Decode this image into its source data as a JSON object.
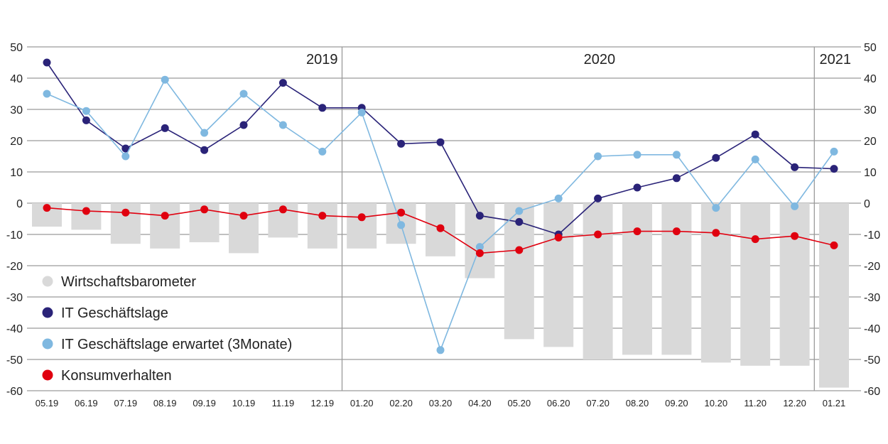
{
  "chart_data": {
    "type": "bar+line",
    "categories": [
      "05.19",
      "06.19",
      "07.19",
      "08.19",
      "09.19",
      "10.19",
      "11.19",
      "12.19",
      "01.20",
      "02.20",
      "03.20",
      "04.20",
      "05.20",
      "06.20",
      "07.20",
      "08.20",
      "09.20",
      "10.20",
      "11.20",
      "12.20",
      "01.21"
    ],
    "ylim": [
      -60,
      50
    ],
    "yticks": [
      50,
      40,
      30,
      20,
      10,
      0,
      -10,
      -20,
      -30,
      -40,
      -50,
      -60
    ],
    "grid": true,
    "year_labels": [
      {
        "label": "2019",
        "start_index": 0,
        "end_index": 7
      },
      {
        "label": "2020",
        "start_index": 8,
        "end_index": 19
      },
      {
        "label": "2021",
        "start_index": 20,
        "end_index": 20
      }
    ],
    "legend_position": "bottom-left",
    "series": [
      {
        "name": "Wirtschaftsbarometer",
        "kind": "bar",
        "color": "#d9d9d9",
        "values": [
          -7.5,
          -8.5,
          -13,
          -14.5,
          -12.5,
          -16,
          -11,
          -14.5,
          -14.5,
          -13,
          -17,
          -24,
          -43.5,
          -46,
          -50,
          -48.5,
          -48.5,
          -51,
          -52,
          -52,
          -59
        ]
      },
      {
        "name": "IT Geschäftslage",
        "kind": "line",
        "color": "#2a2378",
        "values": [
          45,
          26.5,
          17.5,
          24,
          17,
          25,
          38.5,
          30.5,
          30.5,
          19,
          19.5,
          -4,
          -6,
          -10,
          1.5,
          5,
          8,
          14.5,
          22,
          11.5,
          11
        ]
      },
      {
        "name": "IT Geschäftslage erwartet (3Monate)",
        "kind": "line",
        "color": "#7fb8e0",
        "values": [
          35,
          29.5,
          15,
          39.5,
          22.5,
          35,
          25,
          16.5,
          29,
          -7,
          -47,
          -14,
          -2.5,
          1.5,
          15,
          15.5,
          15.5,
          -1.5,
          14,
          -1,
          16.5
        ]
      },
      {
        "name": "Konsumverhalten",
        "kind": "line",
        "color": "#e0000f",
        "values": [
          -1.5,
          -2.5,
          -3,
          -4,
          -2,
          -4,
          -2,
          -4,
          -4.5,
          -3,
          -8,
          -16,
          -15,
          -11,
          -10,
          -9,
          -9,
          -9.5,
          -11.5,
          -10.5,
          -13.5
        ]
      }
    ]
  }
}
